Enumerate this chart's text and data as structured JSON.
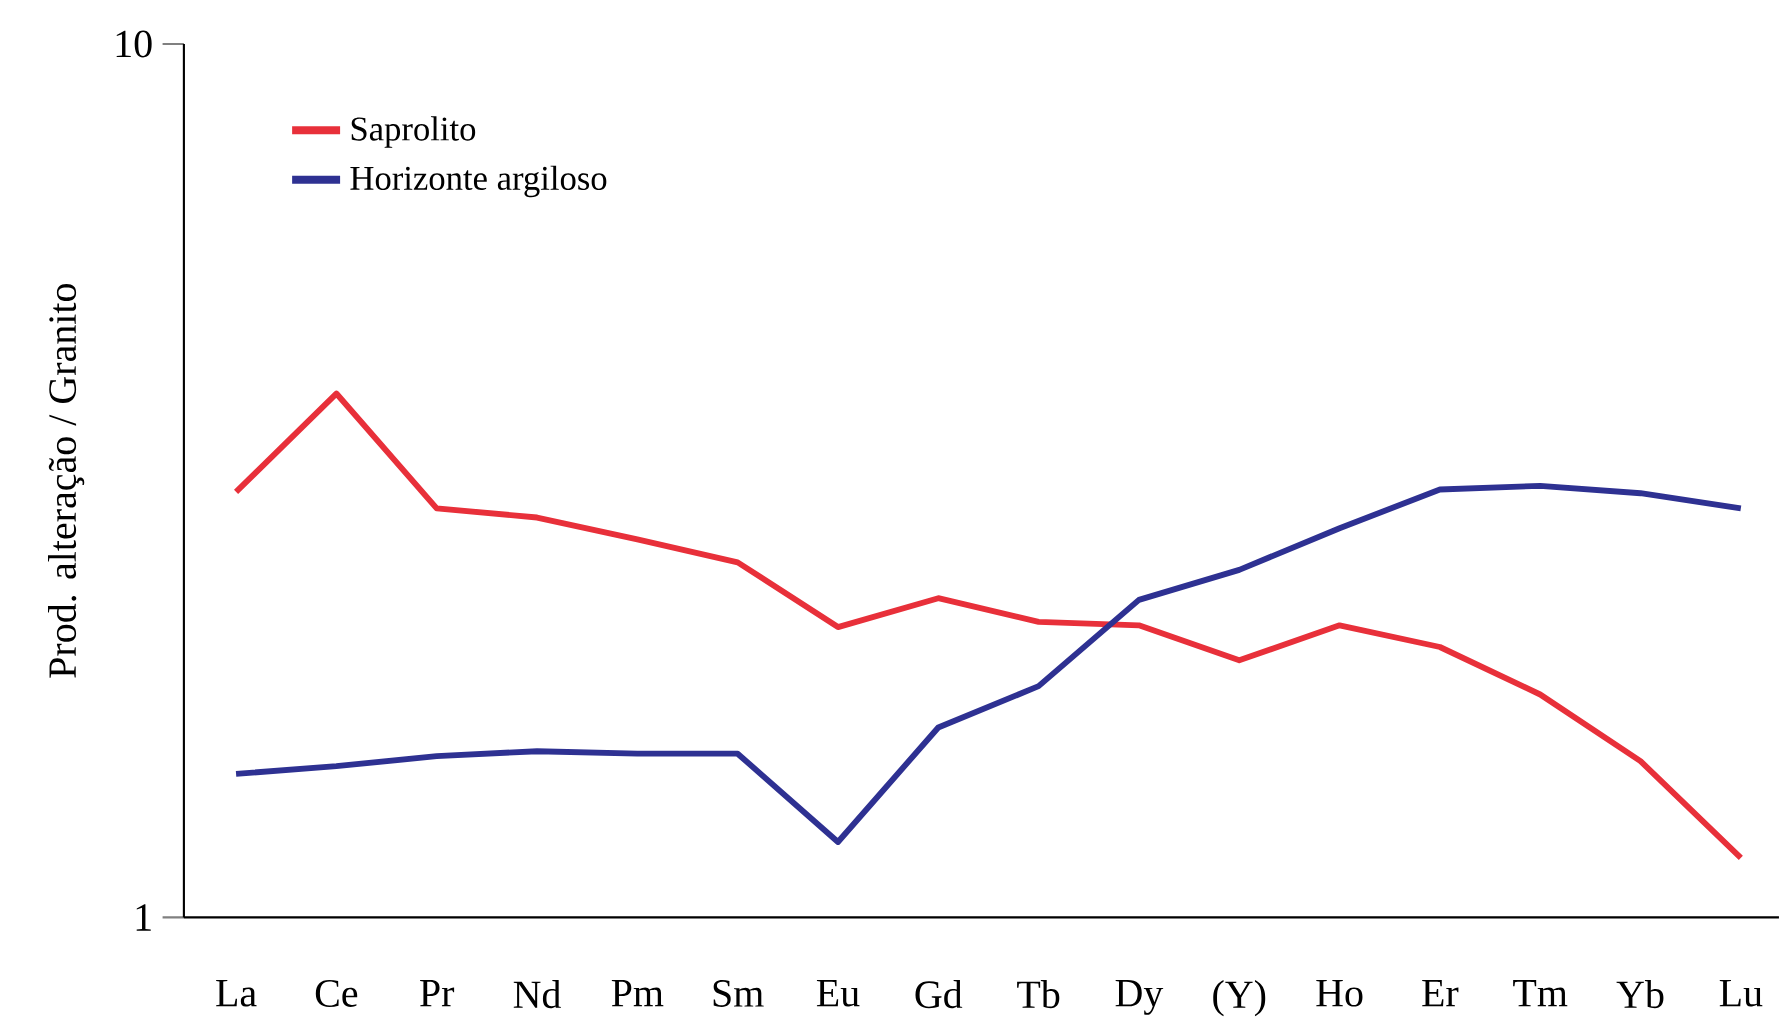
{
  "chart_data": {
    "type": "line",
    "ylabel": "Prod. alteração / Granito",
    "categories": [
      "La",
      "Ce",
      "Pr",
      "Nd",
      "Pm",
      "Sm",
      "Eu",
      "Gd",
      "Tb",
      "Dy",
      "(Y)",
      "Ho",
      "Er",
      "Tm",
      "Yb",
      "Lu"
    ],
    "series": [
      {
        "name": "Saprolito",
        "color": "#e8303a",
        "values": [
          3.07,
          3.98,
          2.94,
          2.87,
          2.71,
          2.55,
          2.15,
          2.32,
          2.18,
          2.16,
          1.97,
          2.16,
          2.04,
          1.8,
          1.51,
          1.17
        ]
      },
      {
        "name": "Horizonte argiloso",
        "color": "#2e3192",
        "values": [
          1.46,
          1.49,
          1.53,
          1.55,
          1.54,
          1.54,
          1.22,
          1.65,
          1.84,
          2.31,
          2.5,
          2.79,
          3.09,
          3.12,
          3.06,
          2.94
        ]
      }
    ],
    "ylim": [
      1,
      10
    ],
    "yticks": [
      1,
      10
    ],
    "log": true,
    "grid": false,
    "legend": "top left",
    "marker": "none",
    "line_style": "solid"
  }
}
